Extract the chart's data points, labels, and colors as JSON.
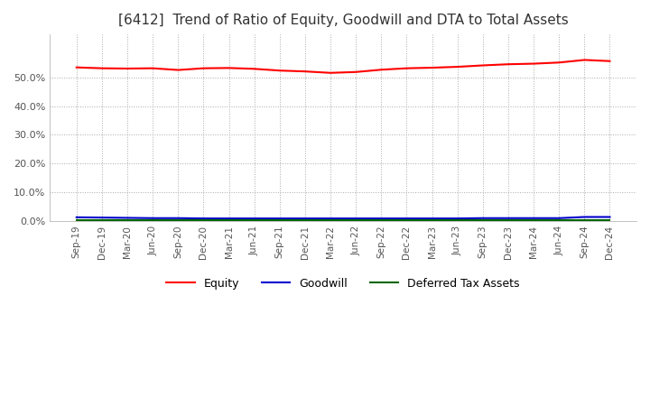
{
  "title": "[6412]  Trend of Ratio of Equity, Goodwill and DTA to Total Assets",
  "x_labels": [
    "Sep-19",
    "Dec-19",
    "Mar-20",
    "Jun-20",
    "Sep-20",
    "Dec-20",
    "Mar-21",
    "Jun-21",
    "Sep-21",
    "Dec-21",
    "Mar-22",
    "Jun-22",
    "Sep-22",
    "Dec-22",
    "Mar-23",
    "Jun-23",
    "Sep-23",
    "Dec-23",
    "Mar-24",
    "Jun-24",
    "Sep-24",
    "Dec-24"
  ],
  "equity": [
    0.535,
    0.532,
    0.531,
    0.532,
    0.526,
    0.532,
    0.533,
    0.53,
    0.524,
    0.521,
    0.516,
    0.519,
    0.527,
    0.532,
    0.534,
    0.537,
    0.542,
    0.546,
    0.548,
    0.552,
    0.561,
    0.557
  ],
  "goodwill": [
    0.013,
    0.012,
    0.011,
    0.01,
    0.01,
    0.009,
    0.009,
    0.009,
    0.009,
    0.009,
    0.009,
    0.009,
    0.009,
    0.009,
    0.009,
    0.009,
    0.01,
    0.01,
    0.01,
    0.01,
    0.014,
    0.014
  ],
  "dta": [
    0.002,
    0.002,
    0.002,
    0.002,
    0.002,
    0.002,
    0.002,
    0.002,
    0.002,
    0.002,
    0.002,
    0.002,
    0.002,
    0.002,
    0.002,
    0.002,
    0.002,
    0.002,
    0.002,
    0.002,
    0.002,
    0.002
  ],
  "equity_color": "#FF0000",
  "goodwill_color": "#0000CC",
  "dta_color": "#006600",
  "ylim": [
    0.0,
    0.65
  ],
  "yticks": [
    0.0,
    0.1,
    0.2,
    0.3,
    0.4,
    0.5
  ],
  "background_color": "#FFFFFF",
  "grid_color": "#AAAAAA",
  "title_fontsize": 11
}
